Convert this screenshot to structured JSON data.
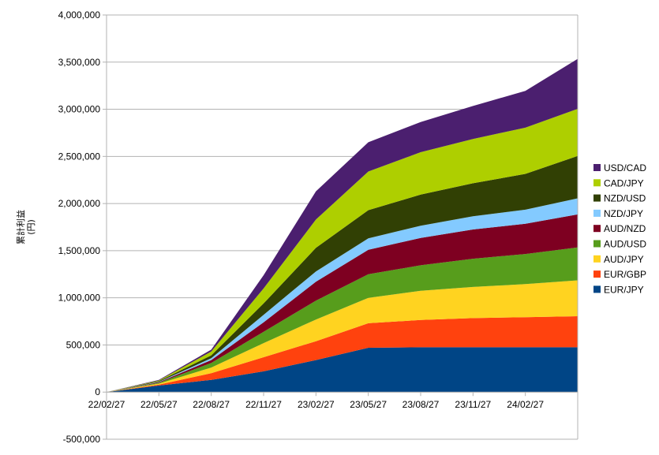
{
  "chart_data": {
    "type": "area",
    "stacked": true,
    "ylabel_line1": "累計利益",
    "ylabel_line2": "(円)",
    "ylim": [
      -500000,
      4000000
    ],
    "y_ticks": [
      -500000,
      0,
      500000,
      1000000,
      1500000,
      2000000,
      2500000,
      3000000,
      3500000,
      4000000
    ],
    "y_tick_labels": [
      "-500,000",
      "0",
      "500,000",
      "1,000,000",
      "1,500,000",
      "2,000,000",
      "2,500,000",
      "3,000,000",
      "3,500,000",
      "4,000,000"
    ],
    "x_tick_labels": [
      "22/02/27",
      "22/05/27",
      "22/08/27",
      "22/11/27",
      "23/02/27",
      "23/05/27",
      "23/08/27",
      "23/11/27",
      "24/02/27"
    ],
    "x": [
      "22/02/27",
      "22/05/27",
      "22/08/27",
      "22/11/27",
      "23/02/27",
      "23/05/27",
      "23/08/27",
      "23/11/27",
      "24/02/27",
      "24/05/20"
    ],
    "grid": true,
    "legend_position": "right",
    "series": [
      {
        "name": "EUR/JPY",
        "color": "#004586",
        "values": [
          0,
          70000,
          130000,
          220000,
          340000,
          470000,
          475000,
          475000,
          475000,
          475000
        ]
      },
      {
        "name": "EUR/GBP",
        "color": "#ff420e",
        "values": [
          0,
          10000,
          70000,
          150000,
          200000,
          260000,
          290000,
          310000,
          320000,
          330000
        ]
      },
      {
        "name": "AUD/JPY",
        "color": "#ffd320",
        "values": [
          0,
          10000,
          60000,
          150000,
          230000,
          270000,
          310000,
          330000,
          350000,
          380000
        ]
      },
      {
        "name": "AUD/USD",
        "color": "#579d1c",
        "values": [
          0,
          8000,
          50000,
          120000,
          200000,
          250000,
          270000,
          300000,
          320000,
          350000
        ]
      },
      {
        "name": "AUD/NZD",
        "color": "#7e0021",
        "values": [
          0,
          6000,
          30000,
          100000,
          200000,
          260000,
          290000,
          310000,
          320000,
          350000
        ]
      },
      {
        "name": "NZD/JPY",
        "color": "#83caff",
        "values": [
          0,
          5000,
          20000,
          80000,
          110000,
          120000,
          130000,
          140000,
          150000,
          170000
        ]
      },
      {
        "name": "NZD/USD",
        "color": "#314004",
        "values": [
          0,
          8000,
          30000,
          120000,
          250000,
          300000,
          330000,
          350000,
          380000,
          450000
        ]
      },
      {
        "name": "CAD/JPY",
        "color": "#aecf00",
        "values": [
          0,
          6000,
          40000,
          160000,
          300000,
          410000,
          450000,
          470000,
          490000,
          500000
        ]
      },
      {
        "name": "USD/CAD",
        "color": "#4b1f6f",
        "values": [
          0,
          7000,
          20000,
          140000,
          300000,
          310000,
          320000,
          350000,
          390000,
          530000
        ]
      }
    ]
  }
}
